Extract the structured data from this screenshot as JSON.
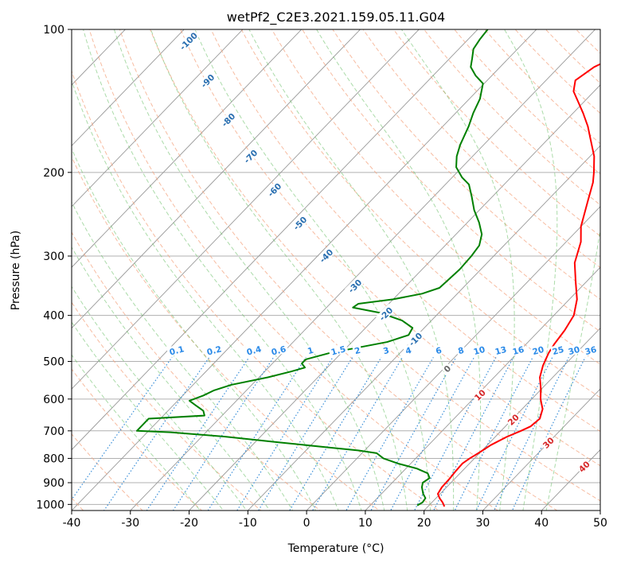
{
  "chart_data": {
    "type": "skew-t",
    "title": "wetPf2_C2E3.2021.159.05.11.G04",
    "xlabel": "Temperature (°C)",
    "ylabel": "Pressure (hPa)",
    "xlim": [
      -40,
      50
    ],
    "ylim": [
      1030,
      100
    ],
    "y_scale": "log",
    "x_ticks": [
      -40,
      -30,
      -20,
      -10,
      0,
      10,
      20,
      30,
      40,
      50
    ],
    "y_ticks": [
      100,
      200,
      300,
      400,
      500,
      600,
      700,
      800,
      900,
      1000
    ],
    "grid": true,
    "colors": {
      "temperature": "#ff0000",
      "dewpoint": "#008000",
      "dry_adiabats": "#f4a582",
      "moist_adiabats": "#66bd63",
      "mixing_ratio": "#3a8fd8",
      "isotherms": "#999999",
      "label_cold": "#2a6fb0",
      "label_warm": "#d62728",
      "label_zero": "#666666",
      "label_mixing": "#2a8ae8"
    },
    "series": [
      {
        "key": "temperature",
        "points": [
          [
            1010,
            22.8
          ],
          [
            990,
            21.8
          ],
          [
            970,
            20.6
          ],
          [
            950,
            19.6
          ],
          [
            920,
            19.2
          ],
          [
            880,
            19.1
          ],
          [
            850,
            18.9
          ],
          [
            820,
            18.8
          ],
          [
            800,
            19.2
          ],
          [
            780,
            19.8
          ],
          [
            750,
            20.6
          ],
          [
            720,
            22.0
          ],
          [
            700,
            23.4
          ],
          [
            685,
            24.3
          ],
          [
            660,
            24.6
          ],
          [
            630,
            23.5
          ],
          [
            600,
            21.5
          ],
          [
            570,
            19.8
          ],
          [
            540,
            17.8
          ],
          [
            510,
            16.4
          ],
          [
            480,
            15.3
          ],
          [
            460,
            14.8
          ],
          [
            430,
            14.3
          ],
          [
            400,
            13.4
          ],
          [
            370,
            11.3
          ],
          [
            340,
            8.2
          ],
          [
            310,
            4.9
          ],
          [
            280,
            2.5
          ],
          [
            260,
            0.0
          ],
          [
            230,
            -3.0
          ],
          [
            210,
            -5.2
          ],
          [
            200,
            -6.7
          ],
          [
            185,
            -9.3
          ],
          [
            170,
            -12.8
          ],
          [
            160,
            -15.3
          ],
          [
            150,
            -18.3
          ],
          [
            142,
            -21.0
          ],
          [
            135,
            -23.5
          ],
          [
            128,
            -25.0
          ],
          [
            120,
            -24.0
          ],
          [
            114,
            -22.0
          ],
          [
            108,
            -22.0
          ],
          [
            104,
            -23.3
          ],
          [
            100,
            -24.8
          ]
        ]
      },
      {
        "key": "dewpoint",
        "points": [
          [
            1005,
            18.0
          ],
          [
            990,
            18.4
          ],
          [
            970,
            18.2
          ],
          [
            950,
            17.1
          ],
          [
            920,
            15.8
          ],
          [
            900,
            15.2
          ],
          [
            880,
            15.6
          ],
          [
            860,
            14.5
          ],
          [
            840,
            11.8
          ],
          [
            820,
            7.8
          ],
          [
            800,
            4.5
          ],
          [
            780,
            2.5
          ],
          [
            770,
            -1.0
          ],
          [
            760,
            -6.0
          ],
          [
            740,
            -16.0
          ],
          [
            720,
            -26.0
          ],
          [
            705,
            -36.0
          ],
          [
            700,
            -42.0
          ],
          [
            660,
            -42.0
          ],
          [
            650,
            -33.0
          ],
          [
            635,
            -34.0
          ],
          [
            620,
            -36.0
          ],
          [
            605,
            -38.0
          ],
          [
            590,
            -36.5
          ],
          [
            575,
            -35.5
          ],
          [
            560,
            -33.5
          ],
          [
            540,
            -28.5
          ],
          [
            525,
            -25.5
          ],
          [
            515,
            -23.8
          ],
          [
            505,
            -25.0
          ],
          [
            495,
            -25.0
          ],
          [
            480,
            -22.0
          ],
          [
            455,
            -14.0
          ],
          [
            440,
            -11.5
          ],
          [
            425,
            -12.0
          ],
          [
            410,
            -15.0
          ],
          [
            395,
            -20.0
          ],
          [
            385,
            -25.5
          ],
          [
            378,
            -25.2
          ],
          [
            370,
            -20.0
          ],
          [
            360,
            -16.0
          ],
          [
            350,
            -14.0
          ],
          [
            335,
            -13.8
          ],
          [
            320,
            -13.6
          ],
          [
            300,
            -13.8
          ],
          [
            285,
            -14.2
          ],
          [
            270,
            -15.6
          ],
          [
            255,
            -18.0
          ],
          [
            240,
            -20.9
          ],
          [
            225,
            -23.5
          ],
          [
            212,
            -26.0
          ],
          [
            205,
            -28.3
          ],
          [
            195,
            -31.0
          ],
          [
            185,
            -32.7
          ],
          [
            175,
            -34.0
          ],
          [
            160,
            -35.6
          ],
          [
            150,
            -37.0
          ],
          [
            140,
            -38.2
          ],
          [
            130,
            -40.2
          ],
          [
            125,
            -42.8
          ],
          [
            120,
            -45.0
          ],
          [
            115,
            -46.2
          ],
          [
            110,
            -47.5
          ],
          [
            105,
            -48.0
          ],
          [
            100,
            -48.3
          ]
        ]
      }
    ],
    "dry_adiabat_labels": [
      "-100",
      "-90",
      "-80",
      "-70",
      "-60",
      "-50",
      "-40",
      "-30",
      "-20",
      "-10",
      "0",
      "10",
      "20",
      "30",
      "40"
    ],
    "mixing_ratio_labels": [
      "0.1",
      "0.2",
      "0.4",
      "0.6",
      "1",
      "1.5",
      "2",
      "3",
      "4",
      "6",
      "8",
      "10",
      "13",
      "16",
      "20",
      "25",
      "30",
      "36"
    ],
    "mixing_ratio_values": [
      0.1,
      0.2,
      0.4,
      0.6,
      1,
      1.5,
      2,
      3,
      4,
      6,
      8,
      10,
      13,
      16,
      20,
      25,
      30,
      36
    ]
  }
}
